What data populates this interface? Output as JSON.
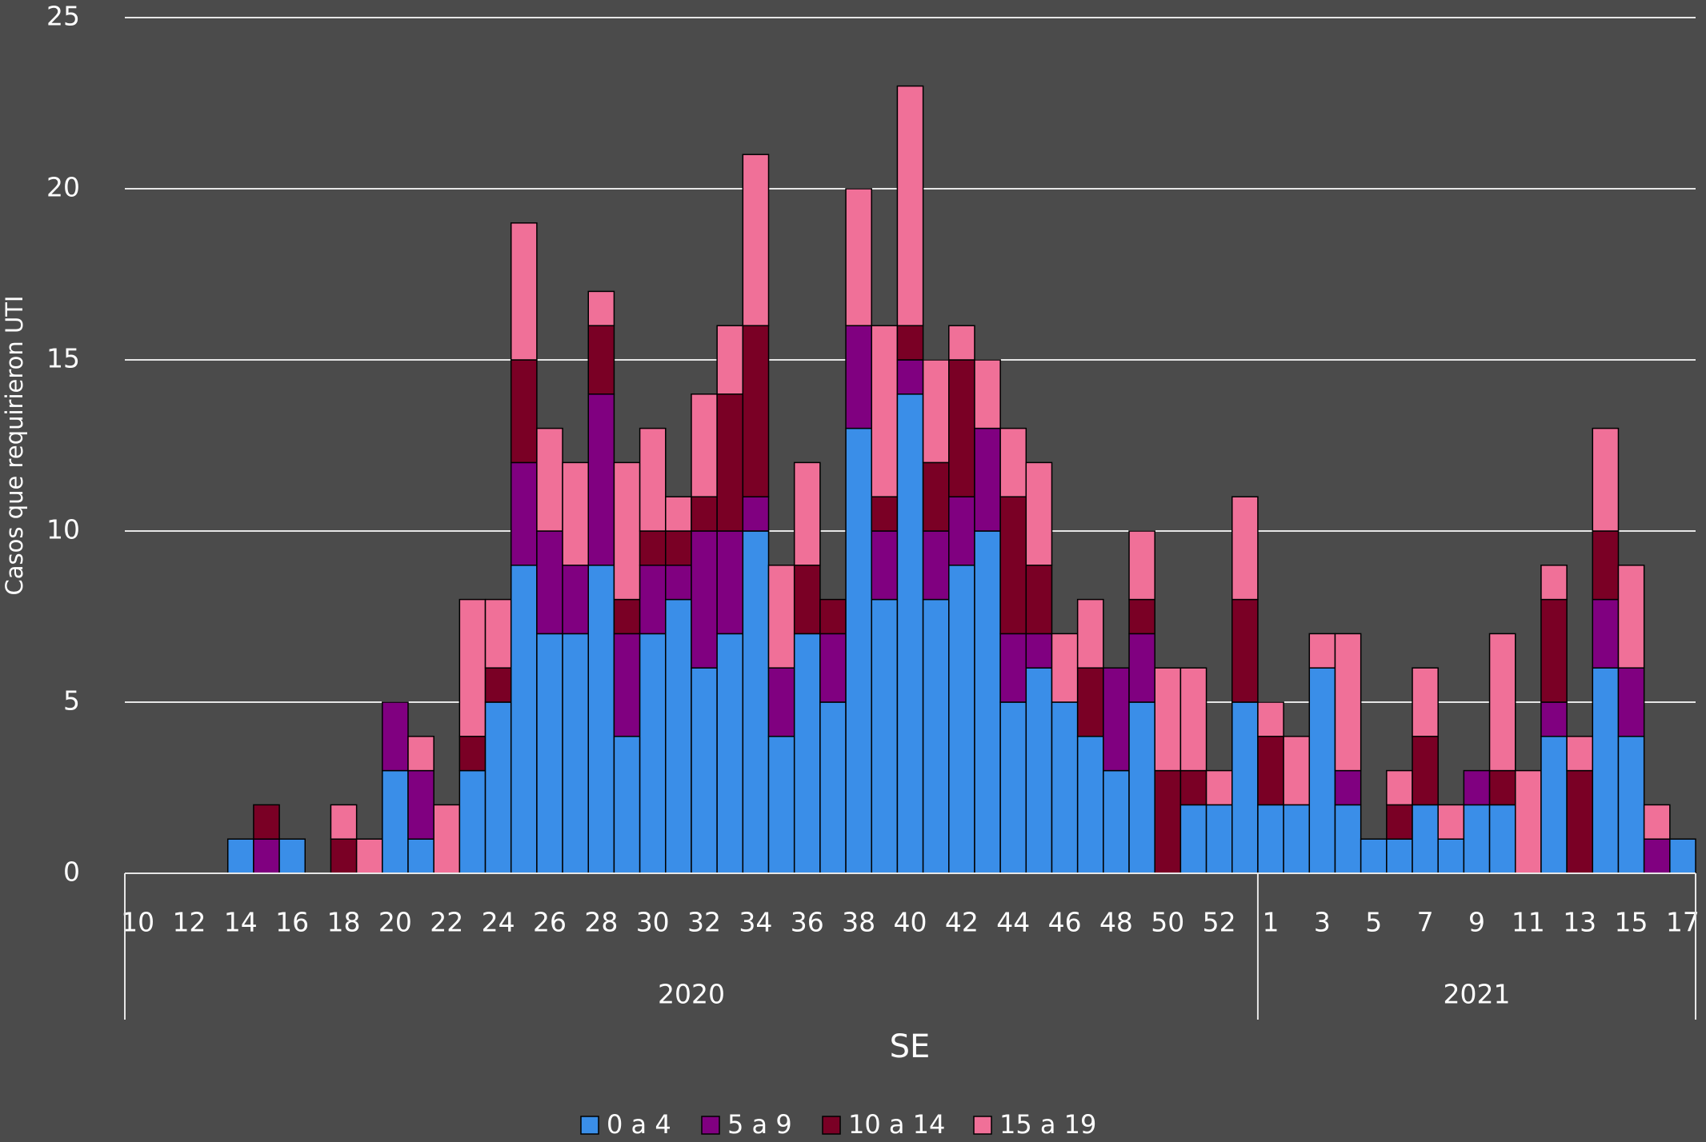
{
  "chart_data": {
    "type": "stacked_bar",
    "y_label": "Casos que requirieron  UTI",
    "x_label": "SE",
    "groups": [
      {
        "label": "2020",
        "categories": [
          "10",
          null,
          "12",
          null,
          "14",
          null,
          "16",
          null,
          "18",
          null,
          "20",
          null,
          "22",
          null,
          "24",
          null,
          "26",
          null,
          "28",
          null,
          "30",
          null,
          "32",
          null,
          "34",
          null,
          "36",
          null,
          "38",
          null,
          "40",
          null,
          "42",
          null,
          "44",
          null,
          "46",
          null,
          "48",
          null,
          "50",
          null,
          "52",
          null
        ]
      },
      {
        "label": "2021",
        "categories": [
          "1",
          null,
          "3",
          null,
          "5",
          null,
          "7",
          null,
          "9",
          null,
          "11",
          null,
          "13",
          null,
          "15",
          null,
          "17"
        ]
      }
    ],
    "series": [
      {
        "name": "0 a 4",
        "color": "#3a8ee8",
        "values": [
          0,
          0,
          0,
          0,
          1,
          0,
          1,
          0,
          0,
          0,
          3,
          1,
          0,
          3,
          5,
          9,
          7,
          7,
          9,
          4,
          7,
          8,
          6,
          7,
          10,
          4,
          7,
          5,
          13,
          8,
          14,
          8,
          9,
          10,
          5,
          6,
          5,
          4,
          3,
          5,
          0,
          2,
          2,
          5,
          2,
          2,
          6,
          2,
          1,
          1,
          2,
          1,
          2,
          2,
          0,
          4,
          0,
          6,
          4,
          0,
          1
        ]
      },
      {
        "name": "5 a 9",
        "color": "#800080",
        "values": [
          0,
          0,
          0,
          0,
          0,
          1,
          0,
          0,
          0,
          0,
          2,
          2,
          0,
          0,
          0,
          3,
          3,
          2,
          5,
          3,
          2,
          1,
          4,
          3,
          1,
          2,
          0,
          2,
          3,
          2,
          1,
          2,
          2,
          3,
          2,
          1,
          0,
          0,
          3,
          2,
          0,
          0,
          0,
          0,
          0,
          0,
          0,
          1,
          0,
          0,
          0,
          0,
          1,
          0,
          0,
          1,
          0,
          2,
          2,
          1,
          0
        ]
      },
      {
        "name": "10 a 14",
        "color": "#7a0025",
        "values": [
          0,
          0,
          0,
          0,
          0,
          1,
          0,
          0,
          1,
          0,
          0,
          0,
          0,
          1,
          1,
          3,
          0,
          0,
          2,
          1,
          1,
          1,
          1,
          4,
          5,
          0,
          2,
          1,
          0,
          1,
          1,
          2,
          4,
          0,
          4,
          2,
          0,
          2,
          0,
          1,
          3,
          1,
          0,
          3,
          2,
          0,
          0,
          0,
          0,
          1,
          2,
          0,
          0,
          1,
          0,
          3,
          3,
          2,
          0,
          0,
          0
        ]
      },
      {
        "name": "15 a 19",
        "color": "#f07098",
        "values": [
          0,
          0,
          0,
          0,
          0,
          0,
          0,
          0,
          1,
          1,
          0,
          1,
          2,
          4,
          2,
          4,
          3,
          3,
          1,
          4,
          3,
          1,
          3,
          2,
          5,
          3,
          3,
          0,
          4,
          5,
          7,
          3,
          1,
          2,
          2,
          3,
          2,
          2,
          0,
          2,
          3,
          3,
          1,
          3,
          1,
          2,
          1,
          4,
          0,
          1,
          2,
          1,
          0,
          4,
          3,
          1,
          1,
          3,
          3,
          1,
          0
        ]
      }
    ],
    "ylim": [
      0,
      25
    ],
    "yticks": [
      0,
      5,
      10,
      15,
      20,
      25
    ],
    "grid": true
  }
}
